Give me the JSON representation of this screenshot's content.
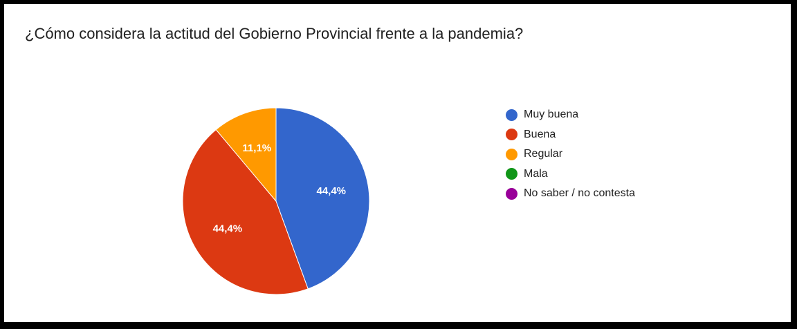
{
  "chart_data": {
    "type": "pie",
    "title": "¿Cómo considera la actitud del Gobierno Provincial frente a la pandemia?",
    "slices": [
      {
        "label": "Muy buena",
        "value": 44.4,
        "display": "44,4%",
        "color": "#3366cc"
      },
      {
        "label": "Buena",
        "value": 44.4,
        "display": "44,4%",
        "color": "#dc3912"
      },
      {
        "label": "Regular",
        "value": 11.1,
        "display": "11,1%",
        "color": "#ff9900"
      },
      {
        "label": "Mala",
        "value": 0,
        "display": "",
        "color": "#109618"
      },
      {
        "label": "No saber / no contesta",
        "value": 0,
        "display": "",
        "color": "#990099"
      }
    ],
    "legend_position": "right"
  }
}
